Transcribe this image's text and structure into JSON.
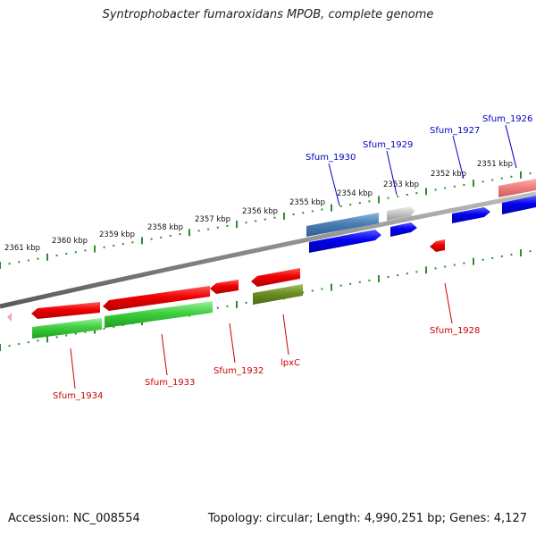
{
  "title": "Syntrophobacter fumaroxidans MPOB, complete genome",
  "footer": {
    "accession": "Accession: NC_008554",
    "summary": "Topology: circular; Length: 4,990,251 bp; Genes: 4,127"
  },
  "colors": {
    "backbone": "#8a8a8a",
    "tick": "#2e8b2e",
    "label_top": "#0000c0",
    "label_bottom": "#cc0000"
  },
  "scale_labels": [
    "2361 kbp",
    "2360 kbp",
    "2359 kbp",
    "2358 kbp",
    "2357 kbp",
    "2356 kbp",
    "2355 kbp",
    "2354 kbp",
    "2353 kbp",
    "2352 kbp",
    "2351 kbp"
  ],
  "top_labels": [
    "Sfum_1930",
    "Sfum_1929",
    "Sfum_1927",
    "Sfum_1926"
  ],
  "bottom_labels": [
    "Sfum_1934",
    "Sfum_1933",
    "Sfum_1932",
    "lpxC",
    "Sfum_1928"
  ]
}
